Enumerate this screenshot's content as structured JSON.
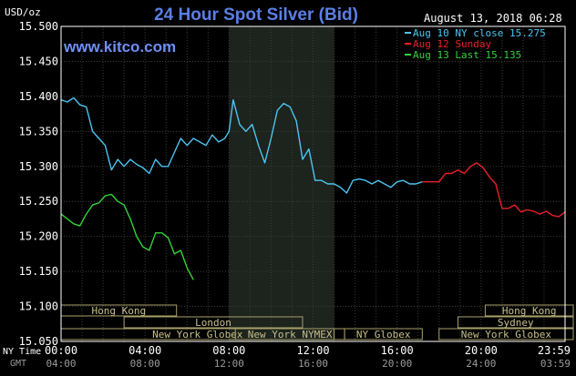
{
  "chart_data": {
    "type": "line",
    "title": "24 Hour Spot Silver (Bid)",
    "brand": "www.kitco.com",
    "timestamp": "August 13, 2018 06:28",
    "ylabel": "USD/oz",
    "ylim": [
      15.05,
      15.5
    ],
    "yticks": [
      "15.500",
      "15.450",
      "15.400",
      "15.350",
      "15.300",
      "15.250",
      "15.200",
      "15.150",
      "15.100",
      "15.050"
    ],
    "xlim": [
      0,
      24
    ],
    "xticks": [
      {
        "h": 0,
        "ny": "00:00",
        "gmt": "04:00"
      },
      {
        "h": 4,
        "ny": "04:00",
        "gmt": "08:00"
      },
      {
        "h": 8,
        "ny": "08:00",
        "gmt": "12:00"
      },
      {
        "h": 12,
        "ny": "12:00",
        "gmt": "16:00"
      },
      {
        "h": 16,
        "ny": "16:00",
        "gmt": "20:00"
      },
      {
        "h": 20,
        "ny": "20:00",
        "gmt": "24:00"
      },
      {
        "h": 24,
        "ny": "23:59",
        "gmt": "03:59"
      }
    ],
    "row_labels": {
      "ny": "NY Time",
      "gmt": "GMT"
    },
    "grid": true,
    "legend_position": "top-right",
    "highlight_band": [
      8,
      13
    ],
    "sessions": [
      {
        "label": "Hong Kong",
        "start": -1,
        "end": 5.5,
        "row": 0
      },
      {
        "label": "London",
        "start": 3,
        "end": 11.5,
        "row": 1
      },
      {
        "label": "New York Globex",
        "start": 0,
        "end": 13,
        "row": 2
      },
      {
        "label": "New York NYMEX",
        "start": 8.3,
        "end": 13.5,
        "row": 2
      },
      {
        "label": "NY Globex",
        "start": 13.5,
        "end": 17.2,
        "row": 2
      },
      {
        "label": "Hong Kong",
        "start": 20.2,
        "end": 25,
        "row": 0
      },
      {
        "label": "Sydney",
        "start": 18.9,
        "end": 25,
        "row": 1
      },
      {
        "label": "New York Globex",
        "start": 18,
        "end": 25,
        "row": 2
      }
    ],
    "series": [
      {
        "name": "Aug 10 NY close 15.275",
        "color": "#4cc4f0",
        "x": [
          0,
          0.3,
          0.6,
          0.9,
          1.2,
          1.5,
          1.8,
          2.1,
          2.4,
          2.7,
          3.0,
          3.3,
          3.6,
          3.9,
          4.2,
          4.5,
          4.8,
          5.1,
          5.4,
          5.7,
          6.0,
          6.3,
          6.6,
          6.9,
          7.2,
          7.5,
          7.8,
          8.0,
          8.2,
          8.5,
          8.8,
          9.1,
          9.4,
          9.7,
          10.0,
          10.3,
          10.6,
          10.9,
          11.2,
          11.5,
          11.8,
          12.1,
          12.4,
          12.7,
          13.0,
          13.3,
          13.6,
          13.9,
          14.2,
          14.5,
          14.8,
          15.1,
          15.4,
          15.7,
          16.0,
          16.3,
          16.6,
          16.9,
          17.2
        ],
        "y": [
          15.395,
          15.392,
          15.398,
          15.388,
          15.385,
          15.35,
          15.34,
          15.33,
          15.295,
          15.31,
          15.3,
          15.31,
          15.303,
          15.298,
          15.29,
          15.31,
          15.3,
          15.3,
          15.32,
          15.34,
          15.33,
          15.34,
          15.335,
          15.33,
          15.345,
          15.335,
          15.34,
          15.35,
          15.395,
          15.36,
          15.35,
          15.36,
          15.33,
          15.305,
          15.34,
          15.38,
          15.39,
          15.385,
          15.365,
          15.31,
          15.325,
          15.28,
          15.28,
          15.275,
          15.275,
          15.27,
          15.262,
          15.28,
          15.282,
          15.28,
          15.275,
          15.28,
          15.275,
          15.27,
          15.278,
          15.28,
          15.275,
          15.275,
          15.278
        ]
      },
      {
        "name": "Aug 12 Sunday",
        "color": "#e8202a",
        "x": [
          17.2,
          17.6,
          18.0,
          18.3,
          18.6,
          18.9,
          19.2,
          19.5,
          19.8,
          20.1,
          20.4,
          20.7,
          21.0,
          21.3,
          21.6,
          21.9,
          22.2,
          22.5,
          22.8,
          23.1,
          23.4,
          23.7,
          24.0
        ],
        "y": [
          15.278,
          15.278,
          15.278,
          15.29,
          15.29,
          15.295,
          15.29,
          15.3,
          15.305,
          15.298,
          15.285,
          15.275,
          15.24,
          15.24,
          15.245,
          15.235,
          15.238,
          15.236,
          15.232,
          15.236,
          15.23,
          15.228,
          15.235
        ]
      },
      {
        "name": "Aug 13 Last 15.135",
        "color": "#34d23a",
        "x": [
          0,
          0.3,
          0.6,
          0.9,
          1.2,
          1.5,
          1.8,
          2.1,
          2.4,
          2.7,
          3.0,
          3.3,
          3.6,
          3.9,
          4.2,
          4.5,
          4.8,
          5.1,
          5.4,
          5.7,
          6.0,
          6.3
        ],
        "y": [
          15.232,
          15.225,
          15.218,
          15.215,
          15.232,
          15.245,
          15.248,
          15.258,
          15.26,
          15.25,
          15.245,
          15.225,
          15.2,
          15.185,
          15.18,
          15.205,
          15.205,
          15.198,
          15.175,
          15.18,
          15.155,
          15.138
        ]
      }
    ]
  }
}
